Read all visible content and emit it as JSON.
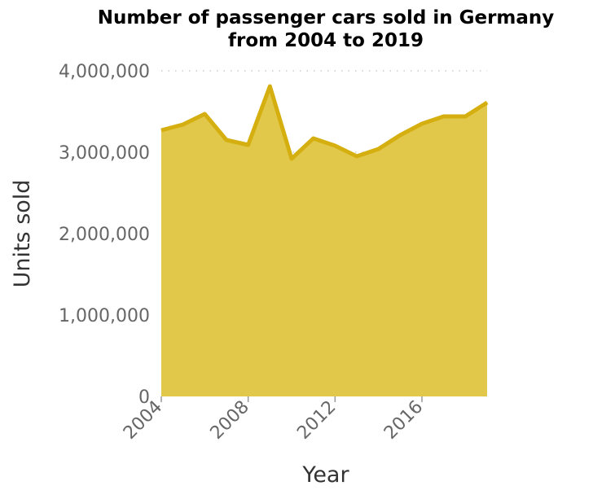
{
  "chart_data": {
    "type": "area",
    "title_line1": "Number of passenger cars sold in Germany",
    "title_line2": "from 2004 to 2019",
    "xlabel": "Year",
    "ylabel": "Units sold",
    "x": [
      2004,
      2005,
      2006,
      2007,
      2008,
      2009,
      2010,
      2011,
      2012,
      2013,
      2014,
      2015,
      2016,
      2017,
      2018,
      2019
    ],
    "values": [
      3270000,
      3340000,
      3470000,
      3150000,
      3090000,
      3810000,
      2920000,
      3170000,
      3080000,
      2950000,
      3040000,
      3210000,
      3350000,
      3440000,
      3440000,
      3610000
    ],
    "xlim": [
      2004,
      2019
    ],
    "ylim": [
      0,
      4000000
    ],
    "yticks": [
      0,
      1000000,
      2000000,
      3000000,
      4000000
    ],
    "ytick_labels": [
      "0",
      "1,000,000",
      "2,000,000",
      "3,000,000",
      "4,000,000"
    ],
    "xticks": [
      2004,
      2008,
      2012,
      2016
    ],
    "xtick_labels": [
      "2004",
      "2008",
      "2012",
      "2016"
    ],
    "grid": true,
    "fill_color": "#e2c84a",
    "line_color": "#d4af0f"
  }
}
